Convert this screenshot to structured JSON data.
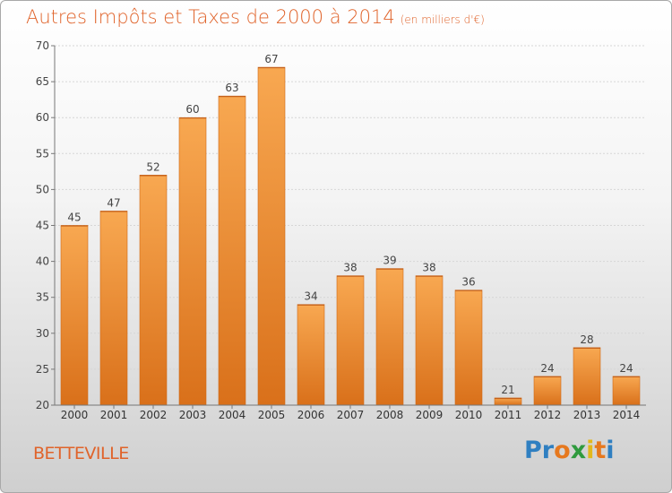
{
  "chart_data": {
    "type": "bar",
    "title": "Autres Impôts et Taxes de 2000 à 2014",
    "subtitle": "(en milliers d'€)",
    "categories": [
      "2000",
      "2001",
      "2002",
      "2003",
      "2004",
      "2005",
      "2006",
      "2007",
      "2008",
      "2009",
      "2010",
      "2011",
      "2012",
      "2013",
      "2014"
    ],
    "values": [
      45,
      47,
      52,
      60,
      63,
      67,
      34,
      38,
      39,
      38,
      36,
      21,
      24,
      28,
      24
    ],
    "ylim": [
      20,
      70
    ],
    "yticks": [
      20,
      25,
      30,
      35,
      40,
      45,
      50,
      55,
      60,
      65,
      70
    ],
    "grid": true,
    "bar_color": "#f0922e"
  },
  "footer": {
    "commune": "BETTEVILLE",
    "logo_letters": [
      {
        "ch": "P",
        "color": "#2f7fc1"
      },
      {
        "ch": "r",
        "color": "#2f7fc1"
      },
      {
        "ch": "o",
        "color": "#e6781e"
      },
      {
        "ch": "x",
        "color": "#2f9a3e"
      },
      {
        "ch": "i",
        "color": "#e2b81c"
      },
      {
        "ch": "t",
        "color": "#e6781e"
      },
      {
        "ch": "i",
        "color": "#2f7fc1"
      }
    ]
  }
}
